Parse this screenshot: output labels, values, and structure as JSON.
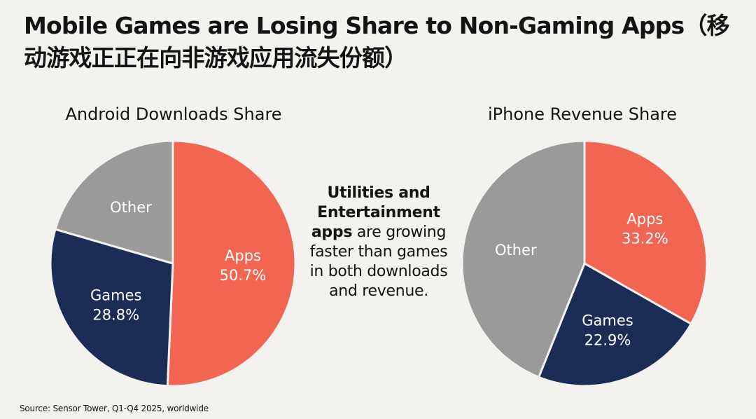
{
  "title": "Mobile Games are Losing Share to Non-Gaming Apps（移动游戏正正在向非游戏应用流失份额）",
  "callout": {
    "bold": "Utilities and Entertainment apps",
    "rest": " are growing faster than games in both downloads and revenue."
  },
  "source": "Source: Sensor Tower, Q1-Q4 2025, worldwide",
  "colors": {
    "apps": "#f26552",
    "games": "#1b2d57",
    "other": "#9a9a9a",
    "background": "#f3f2ee"
  },
  "chart_data": [
    {
      "type": "pie",
      "title": "Android Downloads Share",
      "slices": [
        {
          "label": "Apps",
          "value": 50.7,
          "value_label": "50.7%",
          "color": "#f26552",
          "label_color": "#ffffff"
        },
        {
          "label": "Games",
          "value": 28.8,
          "value_label": "28.8%",
          "color": "#1b2d57",
          "label_color": "#ffffff"
        },
        {
          "label": "Other",
          "value": 20.5,
          "value_label": "",
          "color": "#9a9a9a",
          "label_color": "#ffffff"
        }
      ]
    },
    {
      "type": "pie",
      "title": "iPhone Revenue Share",
      "slices": [
        {
          "label": "Apps",
          "value": 33.2,
          "value_label": "33.2%",
          "color": "#f26552",
          "label_color": "#ffffff"
        },
        {
          "label": "Games",
          "value": 22.9,
          "value_label": "22.9%",
          "color": "#1b2d57",
          "label_color": "#ffffff"
        },
        {
          "label": "Other",
          "value": 43.9,
          "value_label": "",
          "color": "#9a9a9a",
          "label_color": "#ffffff"
        }
      ]
    }
  ]
}
